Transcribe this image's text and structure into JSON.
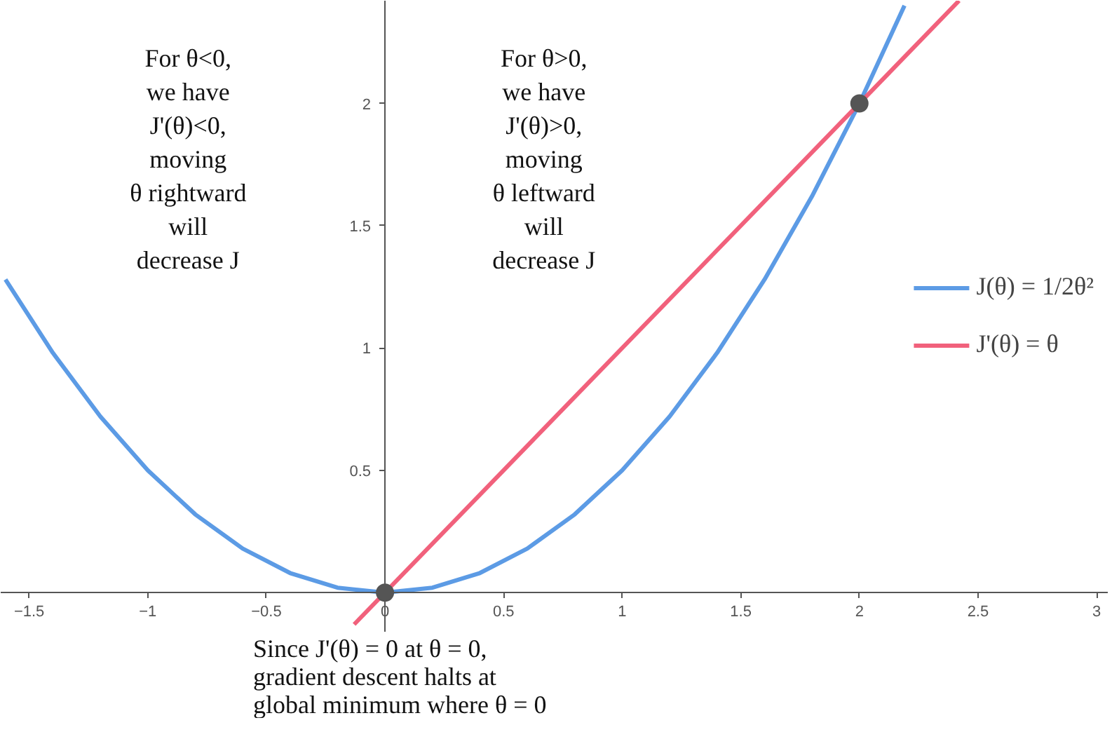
{
  "chart_data": {
    "type": "line",
    "xlim": [
      -1.62,
      3.05
    ],
    "ylim": [
      -0.16,
      2.42
    ],
    "xticks": [
      -1.5,
      -1,
      -0.5,
      0,
      0.5,
      1,
      1.5,
      2,
      2.5,
      3
    ],
    "yticks": [
      0.5,
      1,
      1.5,
      2
    ],
    "grid": false,
    "legend": "right",
    "series": [
      {
        "name": "J(θ) = 1/2θ²",
        "color": "#4a90e2",
        "x": [
          -1.6,
          -1.4,
          -1.2,
          -1.0,
          -0.8,
          -0.6,
          -0.4,
          -0.2,
          0,
          0.2,
          0.4,
          0.6,
          0.8,
          1.0,
          1.2,
          1.4,
          1.6,
          1.8,
          2.0,
          2.19
        ],
        "values": [
          1.28,
          0.98,
          0.72,
          0.5,
          0.32,
          0.18,
          0.08,
          0.02,
          0,
          0.02,
          0.08,
          0.18,
          0.32,
          0.5,
          0.72,
          0.98,
          1.28,
          1.62,
          2.0,
          2.4
        ]
      },
      {
        "name": "J'(θ) = θ",
        "color": "#f0506e",
        "x": [
          -0.13,
          2.42
        ],
        "values": [
          -0.13,
          2.42
        ]
      },
      {
        "type": "scatter",
        "color": "#555555",
        "marker": "circle",
        "x": [
          0,
          2
        ],
        "values": [
          0,
          2
        ]
      }
    ],
    "annotations": [
      "For θ<0,\nwe have\nJ'(θ)<0,\nmoving\nθ rightward\nwill\ndecrease J",
      "For θ>0,\nwe have\nJ'(θ)>0,\nmoving\nθ leftward\nwill\ndecrease J",
      "Since J'(θ) = 0 at θ = 0,\ngradient descent halts at\nglobal minimum where θ = 0"
    ]
  }
}
